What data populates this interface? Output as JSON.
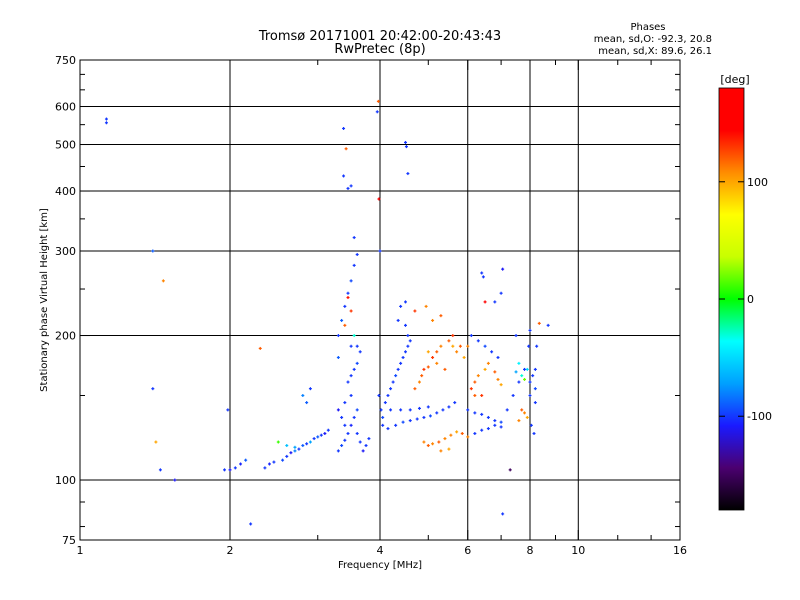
{
  "chart_data": {
    "type": "scatter",
    "title": "Tromsø 20171001 20:42:00-20:43:43",
    "subtitle": "RwPretec (8p)",
    "stats": {
      "heading": "Phases",
      "line1": "mean, sd,O: -92.3, 20.8",
      "line2": "mean, sd,X:  89.6, 26.1"
    },
    "xlabel": "Frequency [MHz]",
    "ylabel": "Stationary phase Virtual Height [km]",
    "x_scale": "log",
    "y_scale": "log",
    "xlim": [
      1,
      16
    ],
    "ylim": [
      75,
      750
    ],
    "x_ticks": [
      1,
      2,
      4,
      6,
      8,
      10,
      16
    ],
    "x_tick_labels": [
      "1",
      "2",
      "4",
      "6",
      "8",
      "10",
      "16"
    ],
    "y_ticks": [
      75,
      100,
      200,
      300,
      400,
      500,
      600,
      750
    ],
    "y_tick_labels": [
      "75",
      "100",
      "200",
      "300",
      "400",
      "500",
      "600",
      "750"
    ],
    "x_grid": [
      2,
      4,
      6,
      8,
      10
    ],
    "y_grid": [
      100,
      200,
      300,
      400,
      500,
      600
    ],
    "grid": true,
    "colorbar": {
      "label": "[deg]",
      "range": [
        -180,
        180
      ],
      "ticks": [
        100,
        0,
        -100
      ],
      "tick_labels": [
        "100",
        "0",
        "-100"
      ],
      "colors": [
        "#000000",
        "#4b0070",
        "#1a1aff",
        "#00a0ff",
        "#00ffff",
        "#00ff00",
        "#c8ff00",
        "#ffff00",
        "#ff8c00",
        "#ff0000",
        "#ff0000"
      ]
    },
    "series": [
      {
        "points": [
          [
            1.13,
            565,
            -100
          ],
          [
            1.13,
            555,
            -100
          ],
          [
            1.4,
            300,
            -90
          ],
          [
            1.4,
            155,
            -100
          ],
          [
            1.45,
            105,
            -100
          ],
          [
            1.55,
            100,
            -110
          ],
          [
            1.42,
            120,
            100
          ],
          [
            1.47,
            260,
            110
          ],
          [
            1.98,
            140,
            -100
          ],
          [
            1.95,
            105,
            -100
          ],
          [
            2.0,
            105,
            -110
          ],
          [
            2.05,
            106,
            -100
          ],
          [
            2.1,
            108,
            -105
          ],
          [
            2.15,
            110,
            -90
          ],
          [
            2.2,
            81,
            -100
          ],
          [
            2.3,
            188,
            120
          ],
          [
            2.35,
            106,
            -100
          ],
          [
            2.4,
            108,
            -105
          ],
          [
            2.45,
            109,
            -100
          ],
          [
            2.55,
            110,
            -95
          ],
          [
            2.6,
            112,
            -100
          ],
          [
            2.65,
            114,
            -110
          ],
          [
            2.7,
            115,
            -80
          ],
          [
            2.75,
            116,
            -100
          ],
          [
            2.8,
            118,
            -90
          ],
          [
            2.85,
            119,
            -100
          ],
          [
            2.9,
            120,
            -70
          ],
          [
            2.95,
            122,
            -100
          ],
          [
            3.0,
            123,
            -90
          ],
          [
            3.05,
            124,
            -100
          ],
          [
            3.1,
            125,
            -110
          ],
          [
            3.15,
            127,
            -100
          ],
          [
            2.8,
            150,
            -80
          ],
          [
            2.9,
            155,
            -100
          ],
          [
            2.85,
            145,
            -90
          ],
          [
            2.5,
            120,
            10
          ],
          [
            2.6,
            118,
            -60
          ],
          [
            2.7,
            117,
            -70
          ],
          [
            3.3,
            115,
            -100
          ],
          [
            3.35,
            118,
            -95
          ],
          [
            3.4,
            121,
            -100
          ],
          [
            3.45,
            125,
            -100
          ],
          [
            3.5,
            130,
            -105
          ],
          [
            3.55,
            135,
            -100
          ],
          [
            3.6,
            140,
            -95
          ],
          [
            3.3,
            200,
            -100
          ],
          [
            3.35,
            215,
            -90
          ],
          [
            3.4,
            230,
            -100
          ],
          [
            3.45,
            245,
            -100
          ],
          [
            3.5,
            260,
            -95
          ],
          [
            3.55,
            280,
            -100
          ],
          [
            3.6,
            295,
            -100
          ],
          [
            3.55,
            320,
            -100
          ],
          [
            3.38,
            540,
            -100
          ],
          [
            3.42,
            490,
            120
          ],
          [
            3.38,
            430,
            -100
          ],
          [
            3.45,
            405,
            -100
          ],
          [
            3.5,
            410,
            -100
          ],
          [
            3.45,
            160,
            -100
          ],
          [
            3.5,
            165,
            -100
          ],
          [
            3.55,
            170,
            -100
          ],
          [
            3.6,
            175,
            -95
          ],
          [
            3.5,
            150,
            -100
          ],
          [
            3.4,
            145,
            -100
          ],
          [
            3.3,
            180,
            -90
          ],
          [
            3.4,
            210,
            120
          ],
          [
            3.5,
            225,
            130
          ],
          [
            3.45,
            240,
            140
          ],
          [
            3.55,
            200,
            -30
          ],
          [
            3.6,
            190,
            -100
          ],
          [
            3.65,
            185,
            -100
          ],
          [
            3.5,
            190,
            -100
          ],
          [
            3.3,
            140,
            -110
          ],
          [
            3.35,
            135,
            -100
          ],
          [
            3.4,
            130,
            -100
          ],
          [
            3.6,
            125,
            -100
          ],
          [
            3.65,
            120,
            -100
          ],
          [
            3.7,
            115,
            -110
          ],
          [
            3.75,
            118,
            -100
          ],
          [
            3.8,
            122,
            -100
          ],
          [
            3.95,
            585,
            -100
          ],
          [
            3.97,
            615,
            120
          ],
          [
            3.98,
            385,
            150
          ],
          [
            4.0,
            300,
            -100
          ],
          [
            3.98,
            150,
            -100
          ],
          [
            4.02,
            140,
            -100
          ],
          [
            4.05,
            135,
            -95
          ],
          [
            4.1,
            145,
            -100
          ],
          [
            4.15,
            150,
            -100
          ],
          [
            4.2,
            155,
            -100
          ],
          [
            4.25,
            160,
            -100
          ],
          [
            4.3,
            165,
            -95
          ],
          [
            4.35,
            170,
            -100
          ],
          [
            4.4,
            175,
            -100
          ],
          [
            4.45,
            180,
            -100
          ],
          [
            4.5,
            185,
            -100
          ],
          [
            4.55,
            190,
            -100
          ],
          [
            4.6,
            195,
            -100
          ],
          [
            4.05,
            130,
            -100
          ],
          [
            4.15,
            128,
            -100
          ],
          [
            4.3,
            130,
            -100
          ],
          [
            4.45,
            132,
            -95
          ],
          [
            4.6,
            133,
            -100
          ],
          [
            4.75,
            134,
            -100
          ],
          [
            4.9,
            135,
            -100
          ],
          [
            5.05,
            136,
            -95
          ],
          [
            5.2,
            138,
            -100
          ],
          [
            5.35,
            140,
            -100
          ],
          [
            5.5,
            142,
            -100
          ],
          [
            5.65,
            145,
            -100
          ],
          [
            4.2,
            140,
            -100
          ],
          [
            4.4,
            140,
            -100
          ],
          [
            4.6,
            140,
            -100
          ],
          [
            4.8,
            141,
            -100
          ],
          [
            5.0,
            142,
            -100
          ],
          [
            4.5,
            505,
            -100
          ],
          [
            4.52,
            495,
            -100
          ],
          [
            4.55,
            435,
            -100
          ],
          [
            4.4,
            230,
            -100
          ],
          [
            4.5,
            235,
            -100
          ],
          [
            4.5,
            210,
            -100
          ],
          [
            4.55,
            200,
            -100
          ],
          [
            4.35,
            215,
            -100
          ],
          [
            4.7,
            155,
            120
          ],
          [
            4.8,
            160,
            110
          ],
          [
            4.85,
            165,
            120
          ],
          [
            4.9,
            170,
            130
          ],
          [
            5.0,
            172,
            120
          ],
          [
            5.1,
            180,
            130
          ],
          [
            5.2,
            185,
            120
          ],
          [
            5.3,
            190,
            110
          ],
          [
            5.5,
            195,
            120
          ],
          [
            5.6,
            200,
            130
          ],
          [
            5.0,
            185,
            100
          ],
          [
            5.2,
            175,
            110
          ],
          [
            5.4,
            170,
            120
          ],
          [
            5.7,
            185,
            110
          ],
          [
            5.8,
            190,
            120
          ],
          [
            5.9,
            180,
            100
          ],
          [
            6.0,
            190,
            110
          ],
          [
            5.3,
            220,
            120
          ],
          [
            5.1,
            215,
            110
          ],
          [
            4.95,
            230,
            110
          ],
          [
            4.7,
            225,
            130
          ],
          [
            5.6,
            190,
            100
          ],
          [
            4.9,
            120,
            110
          ],
          [
            5.0,
            118,
            120
          ],
          [
            5.1,
            119,
            110
          ],
          [
            5.25,
            120,
            120
          ],
          [
            5.4,
            122,
            110
          ],
          [
            5.55,
            124,
            110
          ],
          [
            5.7,
            126,
            100
          ],
          [
            5.85,
            125,
            120
          ],
          [
            6.0,
            123,
            110
          ],
          [
            5.3,
            115,
            110
          ],
          [
            5.5,
            116,
            100
          ],
          [
            6.1,
            155,
            130
          ],
          [
            6.2,
            160,
            120
          ],
          [
            6.3,
            165,
            110
          ],
          [
            6.5,
            170,
            100
          ],
          [
            6.6,
            175,
            110
          ],
          [
            6.8,
            168,
            120
          ],
          [
            6.9,
            162,
            110
          ],
          [
            7.0,
            158,
            100
          ],
          [
            6.4,
            150,
            130
          ],
          [
            6.2,
            150,
            120
          ],
          [
            6.0,
            140,
            -100
          ],
          [
            6.2,
            138,
            -100
          ],
          [
            6.4,
            137,
            -100
          ],
          [
            6.6,
            135,
            -100
          ],
          [
            6.8,
            133,
            -100
          ],
          [
            7.0,
            132,
            -95
          ],
          [
            7.2,
            140,
            -100
          ],
          [
            7.4,
            150,
            -100
          ],
          [
            7.6,
            160,
            -100
          ],
          [
            7.8,
            170,
            -100
          ],
          [
            6.2,
            125,
            -100
          ],
          [
            6.4,
            127,
            -100
          ],
          [
            6.6,
            128,
            -100
          ],
          [
            6.8,
            130,
            -100
          ],
          [
            7.0,
            129,
            -100
          ],
          [
            6.1,
            200,
            -100
          ],
          [
            6.3,
            195,
            -100
          ],
          [
            6.5,
            190,
            -95
          ],
          [
            6.7,
            185,
            -100
          ],
          [
            6.9,
            180,
            -100
          ],
          [
            6.4,
            270,
            -100
          ],
          [
            6.45,
            265,
            -100
          ],
          [
            6.8,
            235,
            -100
          ],
          [
            6.5,
            235,
            150
          ],
          [
            7.0,
            245,
            -100
          ],
          [
            7.05,
            275,
            -110
          ],
          [
            7.05,
            85,
            -100
          ],
          [
            7.3,
            105,
            -150
          ],
          [
            7.5,
            200,
            -100
          ],
          [
            7.7,
            165,
            -30
          ],
          [
            7.8,
            162,
            20
          ],
          [
            7.9,
            170,
            -50
          ],
          [
            7.6,
            175,
            -40
          ],
          [
            7.5,
            168,
            -70
          ],
          [
            7.7,
            140,
            120
          ],
          [
            7.8,
            138,
            110
          ],
          [
            7.9,
            135,
            100
          ],
          [
            7.6,
            133,
            110
          ],
          [
            8.0,
            160,
            -100
          ],
          [
            8.1,
            165,
            -100
          ],
          [
            8.2,
            170,
            -100
          ],
          [
            8.0,
            150,
            -100
          ],
          [
            8.2,
            155,
            -95
          ],
          [
            8.25,
            190,
            -100
          ],
          [
            8.35,
            212,
            120
          ],
          [
            8.7,
            210,
            -100
          ],
          [
            8.0,
            205,
            -100
          ],
          [
            7.95,
            190,
            -100
          ],
          [
            8.05,
            130,
            -100
          ],
          [
            8.15,
            125,
            -100
          ],
          [
            8.2,
            145,
            -100
          ]
        ]
      }
    ]
  }
}
